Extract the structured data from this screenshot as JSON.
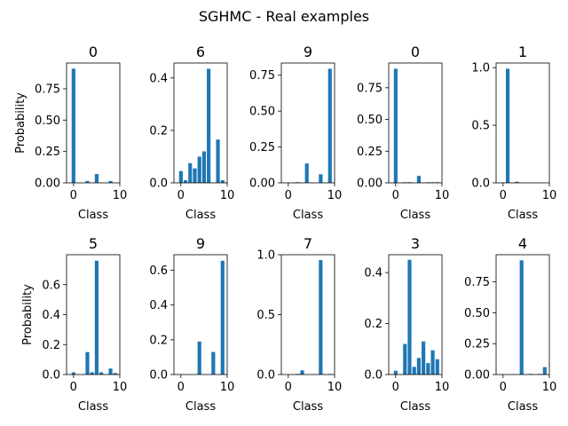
{
  "figure": {
    "suptitle": "SGHMC - Real examples",
    "bar_color": "#1f77b4"
  },
  "chart_data": [
    {
      "type": "bar",
      "title": "0",
      "xlabel": "Class",
      "ylabel": "Probability",
      "x": [
        0,
        1,
        2,
        3,
        4,
        5,
        6,
        7,
        8,
        9
      ],
      "values": [
        0.91,
        0.0,
        0.0,
        0.015,
        0.0,
        0.07,
        0.0,
        0.0,
        0.015,
        0.0
      ],
      "xlim": [
        -1.5,
        10
      ],
      "ylim": [
        0,
        0.955
      ],
      "xticks": [
        "0",
        "10"
      ],
      "yticks": [
        "0.00",
        "0.25",
        "0.50",
        "0.75"
      ],
      "ytick_values": [
        0,
        0.25,
        0.5,
        0.75
      ]
    },
    {
      "type": "bar",
      "title": "6",
      "xlabel": "Class",
      "ylabel": "",
      "x": [
        0,
        1,
        2,
        3,
        4,
        5,
        6,
        7,
        8,
        9
      ],
      "values": [
        0.045,
        0.01,
        0.075,
        0.055,
        0.1,
        0.12,
        0.435,
        0.0,
        0.165,
        0.01
      ],
      "xlim": [
        -1.5,
        10
      ],
      "ylim": [
        0,
        0.457
      ],
      "xticks": [
        "0",
        "10"
      ],
      "yticks": [
        "0.0",
        "0.2",
        "0.4"
      ],
      "ytick_values": [
        0,
        0.2,
        0.4
      ]
    },
    {
      "type": "bar",
      "title": "9",
      "xlabel": "Class",
      "ylabel": "",
      "x": [
        0,
        1,
        2,
        3,
        4,
        5,
        6,
        7,
        8,
        9
      ],
      "values": [
        0.0,
        0.0,
        0.005,
        0.0,
        0.135,
        0.0,
        0.0,
        0.06,
        0.0,
        0.795
      ],
      "xlim": [
        -1.5,
        10
      ],
      "ylim": [
        0,
        0.835
      ],
      "xticks": [
        "0",
        "10"
      ],
      "yticks": [
        "0.00",
        "0.25",
        "0.50",
        "0.75"
      ],
      "ytick_values": [
        0,
        0.25,
        0.5,
        0.75
      ]
    },
    {
      "type": "bar",
      "title": "0",
      "xlabel": "Class",
      "ylabel": "",
      "x": [
        0,
        1,
        2,
        3,
        4,
        5,
        6,
        7,
        8,
        9
      ],
      "values": [
        0.9,
        0.0,
        0.005,
        0.005,
        0.0,
        0.055,
        0.0,
        0.005,
        0.005,
        0.005
      ],
      "xlim": [
        -1.5,
        10
      ],
      "ylim": [
        0,
        0.945
      ],
      "xticks": [
        "0",
        "10"
      ],
      "yticks": [
        "0.00",
        "0.25",
        "0.50",
        "0.75"
      ],
      "ytick_values": [
        0,
        0.25,
        0.5,
        0.75
      ]
    },
    {
      "type": "bar",
      "title": "1",
      "xlabel": "Class",
      "ylabel": "",
      "x": [
        0,
        1,
        2,
        3,
        4,
        5,
        6,
        7,
        8,
        9
      ],
      "values": [
        0.0,
        0.99,
        0.0,
        0.01,
        0.0,
        0.0,
        0.0,
        0.0,
        0.0,
        0.0
      ],
      "xlim": [
        -1.5,
        10
      ],
      "ylim": [
        0,
        1.04
      ],
      "xticks": [
        "0",
        "10"
      ],
      "yticks": [
        "0.0",
        "0.5",
        "1.0"
      ],
      "ytick_values": [
        0,
        0.5,
        1.0
      ]
    },
    {
      "type": "bar",
      "title": "5",
      "xlabel": "Class",
      "ylabel": "Probability",
      "x": [
        0,
        1,
        2,
        3,
        4,
        5,
        6,
        7,
        8,
        9
      ],
      "values": [
        0.015,
        0.0,
        0.0,
        0.15,
        0.015,
        0.76,
        0.015,
        0.0,
        0.04,
        0.01
      ],
      "xlim": [
        -1.5,
        10
      ],
      "ylim": [
        0,
        0.8
      ],
      "xticks": [
        "0",
        "10"
      ],
      "yticks": [
        "0.0",
        "0.2",
        "0.4",
        "0.6"
      ],
      "ytick_values": [
        0,
        0.2,
        0.4,
        0.6
      ]
    },
    {
      "type": "bar",
      "title": "9",
      "xlabel": "Class",
      "ylabel": "",
      "x": [
        0,
        1,
        2,
        3,
        4,
        5,
        6,
        7,
        8,
        9
      ],
      "values": [
        0.0,
        0.0,
        0.0,
        0.0,
        0.19,
        0.0,
        0.0,
        0.13,
        0.0,
        0.655
      ],
      "xlim": [
        -1.5,
        10
      ],
      "ylim": [
        0,
        0.69
      ],
      "xticks": [
        "0",
        "10"
      ],
      "yticks": [
        "0.0",
        "0.2",
        "0.4",
        "0.6"
      ],
      "ytick_values": [
        0,
        0.2,
        0.4,
        0.6
      ]
    },
    {
      "type": "bar",
      "title": "7",
      "xlabel": "Class",
      "ylabel": "",
      "x": [
        0,
        1,
        2,
        3,
        4,
        5,
        6,
        7,
        8,
        9
      ],
      "values": [
        0.0,
        0.0,
        0.005,
        0.035,
        0.0,
        0.0,
        0.0,
        0.955,
        0.0,
        0.005
      ],
      "xlim": [
        -1.5,
        10
      ],
      "ylim": [
        0,
        1.0
      ],
      "xticks": [
        "0",
        "10"
      ],
      "yticks": [
        "0.0",
        "0.5",
        "1.0"
      ],
      "ytick_values": [
        0,
        0.5,
        1.0
      ]
    },
    {
      "type": "bar",
      "title": "3",
      "xlabel": "Class",
      "ylabel": "",
      "x": [
        0,
        1,
        2,
        3,
        4,
        5,
        6,
        7,
        8,
        9
      ],
      "values": [
        0.015,
        0.0,
        0.12,
        0.45,
        0.03,
        0.065,
        0.13,
        0.045,
        0.095,
        0.06
      ],
      "xlim": [
        -1.5,
        10
      ],
      "ylim": [
        0,
        0.47
      ],
      "xticks": [
        "0",
        "10"
      ],
      "yticks": [
        "0.0",
        "0.2",
        "0.4"
      ],
      "ytick_values": [
        0,
        0.2,
        0.4
      ]
    },
    {
      "type": "bar",
      "title": "4",
      "xlabel": "Class",
      "ylabel": "",
      "x": [
        0,
        1,
        2,
        3,
        4,
        5,
        6,
        7,
        8,
        9
      ],
      "values": [
        0.0,
        0.0,
        0.0,
        0.0,
        0.925,
        0.0,
        0.005,
        0.0,
        0.005,
        0.06
      ],
      "xlim": [
        -1.5,
        10
      ],
      "ylim": [
        0,
        0.97
      ],
      "xticks": [
        "0",
        "10"
      ],
      "yticks": [
        "0.00",
        "0.25",
        "0.50",
        "0.75"
      ],
      "ytick_values": [
        0,
        0.25,
        0.5,
        0.75
      ]
    }
  ]
}
